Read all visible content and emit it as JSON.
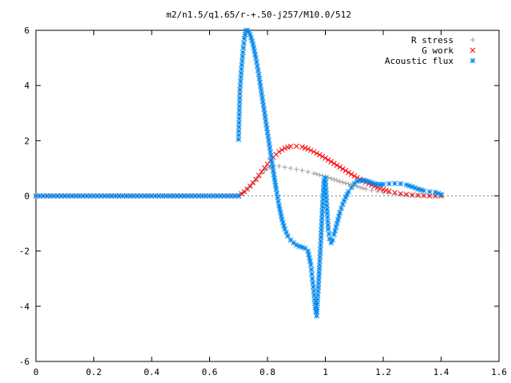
{
  "chart_data": {
    "type": "scatter",
    "title": "m2/n1.5/q1.65/r-+.50-j257/M10.0/512",
    "xlabel": "",
    "ylabel": "",
    "xlim": [
      0,
      1.6
    ],
    "ylim": [
      -6,
      6
    ],
    "xticks": [
      "0",
      "0.2",
      "0.4",
      "0.6",
      "0.8",
      "1",
      "1.2",
      "1.4",
      "1.6"
    ],
    "yticks": [
      "-6",
      "-4",
      "-2",
      "0",
      "2",
      "4",
      "6"
    ],
    "grid": false,
    "legend_position": "top-right",
    "colors": {
      "r_stress": "#a0a0a0",
      "g_work": "#ff0000",
      "acoustic_flux": "#0088ee"
    },
    "series": [
      {
        "name": "R stress",
        "marker": "plus",
        "color": "#a0a0a0",
        "x": [
          0.7,
          0.72,
          0.74,
          0.76,
          0.78,
          0.8,
          0.82,
          0.84,
          0.86,
          0.88,
          0.9,
          0.92,
          0.94,
          0.96,
          0.98,
          1.0,
          1.02,
          1.04,
          1.06,
          1.08,
          1.1,
          1.12,
          1.14,
          1.16,
          1.18,
          1.2,
          1.22,
          1.24,
          1.26,
          1.28,
          1.3,
          1.32,
          1.34,
          1.36,
          1.38,
          1.4
        ],
        "y": [
          0.0,
          0.15,
          0.35,
          0.58,
          0.82,
          1.0,
          1.08,
          1.08,
          1.04,
          1.0,
          0.96,
          0.92,
          0.87,
          0.82,
          0.76,
          0.7,
          0.63,
          0.56,
          0.49,
          0.43,
          0.37,
          0.31,
          0.25,
          0.2,
          0.16,
          0.12,
          0.09,
          0.07,
          0.05,
          0.04,
          0.03,
          0.02,
          0.01,
          0.01,
          0.0,
          0.0
        ]
      },
      {
        "name": "G work",
        "marker": "cross",
        "color": "#ff0000",
        "x": [
          0.7,
          0.72,
          0.74,
          0.76,
          0.78,
          0.8,
          0.82,
          0.84,
          0.86,
          0.88,
          0.9,
          0.92,
          0.94,
          0.96,
          0.98,
          1.0,
          1.02,
          1.04,
          1.06,
          1.08,
          1.1,
          1.12,
          1.14,
          1.16,
          1.18,
          1.2,
          1.22,
          1.24,
          1.26,
          1.28,
          1.3,
          1.32,
          1.34,
          1.36,
          1.38,
          1.4
        ],
        "y": [
          0.0,
          0.15,
          0.35,
          0.6,
          0.88,
          1.15,
          1.4,
          1.6,
          1.73,
          1.79,
          1.8,
          1.77,
          1.7,
          1.6,
          1.49,
          1.37,
          1.24,
          1.11,
          0.98,
          0.85,
          0.72,
          0.6,
          0.49,
          0.39,
          0.3,
          0.23,
          0.17,
          0.12,
          0.08,
          0.05,
          0.03,
          0.02,
          0.01,
          0.0,
          0.0,
          0.0
        ]
      },
      {
        "name": "Acoustic flux",
        "marker": "star",
        "color": "#0088ee",
        "x": [
          0.7,
          0.705,
          0.71,
          0.715,
          0.72,
          0.725,
          0.73,
          0.735,
          0.74,
          0.75,
          0.76,
          0.77,
          0.78,
          0.79,
          0.8,
          0.81,
          0.82,
          0.83,
          0.84,
          0.85,
          0.86,
          0.87,
          0.88,
          0.89,
          0.9,
          0.91,
          0.92,
          0.93,
          0.94,
          0.95,
          0.955,
          0.96,
          0.965,
          0.97,
          0.975,
          0.98,
          0.985,
          0.99,
          0.995,
          1.0,
          1.005,
          1.01,
          1.015,
          1.02,
          1.025,
          1.03,
          1.04,
          1.05,
          1.06,
          1.07,
          1.08,
          1.09,
          1.1,
          1.11,
          1.12,
          1.13,
          1.14,
          1.15,
          1.16,
          1.17,
          1.18,
          1.19,
          1.2,
          1.22,
          1.24,
          1.26,
          1.28,
          1.3,
          1.32,
          1.34,
          1.36,
          1.38,
          1.4
        ],
        "y": [
          2.05,
          3.85,
          4.6,
          5.2,
          5.7,
          5.98,
          6.0,
          5.95,
          5.85,
          5.5,
          5.0,
          4.4,
          3.7,
          3.0,
          2.3,
          1.6,
          0.9,
          0.25,
          -0.35,
          -0.85,
          -1.2,
          -1.45,
          -1.6,
          -1.7,
          -1.78,
          -1.83,
          -1.86,
          -1.9,
          -2.0,
          -2.5,
          -3.0,
          -3.45,
          -4.05,
          -4.35,
          -3.45,
          -2.5,
          -1.5,
          -0.4,
          0.55,
          0.65,
          -0.35,
          -1.2,
          -1.55,
          -1.7,
          -1.6,
          -1.4,
          -1.0,
          -0.6,
          -0.3,
          -0.05,
          0.15,
          0.3,
          0.45,
          0.53,
          0.56,
          0.57,
          0.55,
          0.52,
          0.48,
          0.44,
          0.42,
          0.41,
          0.42,
          0.44,
          0.45,
          0.44,
          0.4,
          0.33,
          0.25,
          0.19,
          0.15,
          0.13,
          0.05
        ]
      }
    ]
  }
}
